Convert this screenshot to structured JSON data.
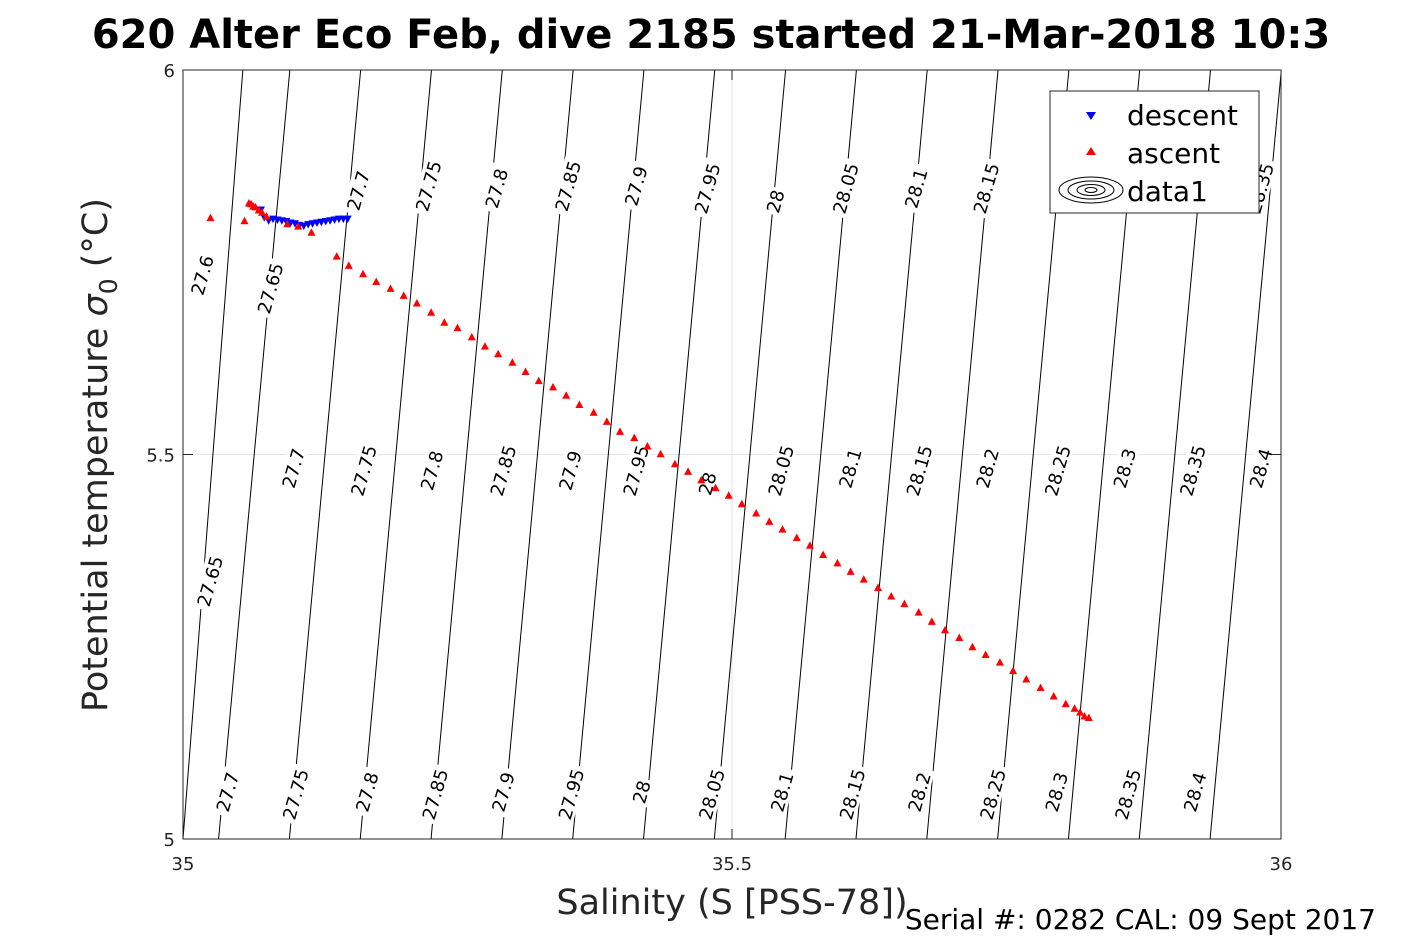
{
  "chart_data": {
    "type": "scatter",
    "title": "620 Alter Eco Feb, dive 2185 started 21-Mar-2018 10:3",
    "xlabel": "Salinity (S [PSS-78])",
    "ylabel_text": "Potential temperature ",
    "ylabel_symbol": "σ",
    "ylabel_subscript": "0",
    "ylabel_unit": " (°C)",
    "xlim": [
      35,
      36
    ],
    "ylim": [
      5,
      6
    ],
    "x_ticks": [
      {
        "value": 35,
        "label": "35"
      },
      {
        "value": 35.5,
        "label": "35.5"
      },
      {
        "value": 36,
        "label": "36"
      }
    ],
    "y_ticks": [
      {
        "value": 5,
        "label": "5"
      },
      {
        "value": 5.5,
        "label": "5.5"
      },
      {
        "value": 6,
        "label": "6"
      }
    ],
    "grid": true,
    "legend_location": "top-right",
    "legend": [
      {
        "label": "descent",
        "marker": "triangle-down",
        "color": "#0000ff"
      },
      {
        "label": "ascent",
        "marker": "triangle-up",
        "color": "#ff0000"
      },
      {
        "label": "data1",
        "marker": "contour",
        "color": "#000000"
      }
    ],
    "contours": {
      "levels": [
        "27.6",
        "27.65",
        "27.7",
        "27.75",
        "27.8",
        "27.85",
        "27.9",
        "27.95",
        "28",
        "28.05",
        "28.1",
        "28.15",
        "28.2",
        "28.25",
        "28.3",
        "28.35",
        "28.4"
      ],
      "lines": [
        {
          "x_at_t5": 35.0,
          "x_at_t6": 35.0545
        },
        {
          "x_at_t5": 35.0324,
          "x_at_t6": 35.0973
        },
        {
          "x_at_t5": 35.0969,
          "x_at_t6": 35.1618
        },
        {
          "x_at_t5": 35.1614,
          "x_at_t6": 35.2263
        },
        {
          "x_at_t5": 35.2259,
          "x_at_t6": 35.2908
        },
        {
          "x_at_t5": 35.2904,
          "x_at_t6": 35.3553
        },
        {
          "x_at_t5": 35.3549,
          "x_at_t6": 35.4198
        },
        {
          "x_at_t5": 35.4194,
          "x_at_t6": 35.4843
        },
        {
          "x_at_t5": 35.4839,
          "x_at_t6": 35.5488
        },
        {
          "x_at_t5": 35.5484,
          "x_at_t6": 35.6133
        },
        {
          "x_at_t5": 35.6129,
          "x_at_t6": 35.6778
        },
        {
          "x_at_t5": 35.6774,
          "x_at_t6": 35.7423
        },
        {
          "x_at_t5": 35.7419,
          "x_at_t6": 35.8068
        },
        {
          "x_at_t5": 35.8064,
          "x_at_t6": 35.8713
        },
        {
          "x_at_t5": 35.8709,
          "x_at_t6": 35.9358
        },
        {
          "x_at_t5": 35.9354,
          "x_at_t6": 36.0003
        },
        {
          "x_at_t5": 35.9999,
          "x_at_t6": 36.0648
        }
      ],
      "labels": [
        {
          "text": "27.6",
          "s": 35.018,
          "t": 5.733
        },
        {
          "text": "27.65",
          "s": 35.08,
          "t": 5.716
        },
        {
          "text": "27.7",
          "s": 35.16,
          "t": 5.843
        },
        {
          "text": "27.75",
          "s": 35.224,
          "t": 5.849
        },
        {
          "text": "27.8",
          "s": 35.286,
          "t": 5.846
        },
        {
          "text": "27.85",
          "s": 35.351,
          "t": 5.849
        },
        {
          "text": "27.9",
          "s": 35.413,
          "t": 5.849
        },
        {
          "text": "27.95",
          "s": 35.478,
          "t": 5.846
        },
        {
          "text": "28",
          "s": 35.54,
          "t": 5.829
        },
        {
          "text": "28.05",
          "s": 35.604,
          "t": 5.846
        },
        {
          "text": "28.1",
          "s": 35.668,
          "t": 5.846
        },
        {
          "text": "28.15",
          "s": 35.732,
          "t": 5.846
        },
        {
          "text": "28.35",
          "s": 35.982,
          "t": 5.846
        },
        {
          "text": "27.65",
          "s": 35.025,
          "t": 5.335
        },
        {
          "text": "27.7",
          "s": 35.101,
          "t": 5.482
        },
        {
          "text": "27.75",
          "s": 35.165,
          "t": 5.479
        },
        {
          "text": "27.8",
          "s": 35.227,
          "t": 5.479
        },
        {
          "text": "27.85",
          "s": 35.292,
          "t": 5.479
        },
        {
          "text": "27.9",
          "s": 35.353,
          "t": 5.479
        },
        {
          "text": "27.95",
          "s": 35.413,
          "t": 5.479
        },
        {
          "text": "28",
          "s": 35.478,
          "t": 5.462
        },
        {
          "text": "28.05",
          "s": 35.545,
          "t": 5.479
        },
        {
          "text": "28.1",
          "s": 35.608,
          "t": 5.482
        },
        {
          "text": "28.15",
          "s": 35.671,
          "t": 5.479
        },
        {
          "text": "28.2",
          "s": 35.733,
          "t": 5.482
        },
        {
          "text": "28.25",
          "s": 35.797,
          "t": 5.479
        },
        {
          "text": "28.3",
          "s": 35.858,
          "t": 5.482
        },
        {
          "text": "28.35",
          "s": 35.92,
          "t": 5.479
        },
        {
          "text": "28.4",
          "s": 35.982,
          "t": 5.482
        },
        {
          "text": "27.7",
          "s": 35.041,
          "t": 5.061
        },
        {
          "text": "27.75",
          "s": 35.103,
          "t": 5.058
        },
        {
          "text": "27.8",
          "s": 35.168,
          "t": 5.061
        },
        {
          "text": "27.85",
          "s": 35.23,
          "t": 5.058
        },
        {
          "text": "27.9",
          "s": 35.292,
          "t": 5.061
        },
        {
          "text": "27.95",
          "s": 35.354,
          "t": 5.058
        },
        {
          "text": "28",
          "s": 35.418,
          "t": 5.061
        },
        {
          "text": "28.05",
          "s": 35.482,
          "t": 5.058
        },
        {
          "text": "28.1",
          "s": 35.546,
          "t": 5.061
        },
        {
          "text": "28.15",
          "s": 35.61,
          "t": 5.058
        },
        {
          "text": "28.2",
          "s": 35.671,
          "t": 5.061
        },
        {
          "text": "28.25",
          "s": 35.738,
          "t": 5.058
        },
        {
          "text": "28.3",
          "s": 35.796,
          "t": 5.061
        },
        {
          "text": "28.35",
          "s": 35.861,
          "t": 5.058
        },
        {
          "text": "28.4",
          "s": 35.922,
          "t": 5.061
        }
      ]
    },
    "series": [
      {
        "name": "descent",
        "marker": "triangle-down",
        "color": "#0000ff",
        "points": [
          {
            "x": 35.071,
            "y": 5.818
          },
          {
            "x": 35.074,
            "y": 5.808
          },
          {
            "x": 35.078,
            "y": 5.804
          },
          {
            "x": 35.082,
            "y": 5.806
          },
          {
            "x": 35.086,
            "y": 5.805
          },
          {
            "x": 35.09,
            "y": 5.804
          },
          {
            "x": 35.094,
            "y": 5.803
          },
          {
            "x": 35.098,
            "y": 5.801
          },
          {
            "x": 35.102,
            "y": 5.8
          },
          {
            "x": 35.106,
            "y": 5.798
          },
          {
            "x": 35.11,
            "y": 5.797
          },
          {
            "x": 35.114,
            "y": 5.799
          },
          {
            "x": 35.118,
            "y": 5.8
          },
          {
            "x": 35.122,
            "y": 5.801
          },
          {
            "x": 35.126,
            "y": 5.802
          },
          {
            "x": 35.13,
            "y": 5.803
          },
          {
            "x": 35.134,
            "y": 5.804
          },
          {
            "x": 35.138,
            "y": 5.805
          },
          {
            "x": 35.142,
            "y": 5.806
          },
          {
            "x": 35.146,
            "y": 5.806
          },
          {
            "x": 35.15,
            "y": 5.806
          }
        ]
      },
      {
        "name": "ascent",
        "marker": "triangle-up",
        "color": "#ff0000",
        "points": [
          {
            "x": 35.025,
            "y": 5.808
          },
          {
            "x": 35.056,
            "y": 5.804
          },
          {
            "x": 35.06,
            "y": 5.827
          },
          {
            "x": 35.062,
            "y": 5.826
          },
          {
            "x": 35.064,
            "y": 5.823
          },
          {
            "x": 35.066,
            "y": 5.822
          },
          {
            "x": 35.069,
            "y": 5.818
          },
          {
            "x": 35.072,
            "y": 5.815
          },
          {
            "x": 35.076,
            "y": 5.81
          },
          {
            "x": 35.095,
            "y": 5.8
          },
          {
            "x": 35.105,
            "y": 5.797
          },
          {
            "x": 35.117,
            "y": 5.789
          },
          {
            "x": 35.14,
            "y": 5.758
          },
          {
            "x": 35.151,
            "y": 5.746
          },
          {
            "x": 35.164,
            "y": 5.735
          },
          {
            "x": 35.176,
            "y": 5.725
          },
          {
            "x": 35.189,
            "y": 5.716
          },
          {
            "x": 35.201,
            "y": 5.707
          },
          {
            "x": 35.213,
            "y": 5.697
          },
          {
            "x": 35.226,
            "y": 5.685
          },
          {
            "x": 35.238,
            "y": 5.672
          },
          {
            "x": 35.25,
            "y": 5.665
          },
          {
            "x": 35.263,
            "y": 5.653
          },
          {
            "x": 35.275,
            "y": 5.641
          },
          {
            "x": 35.287,
            "y": 5.631
          },
          {
            "x": 35.3,
            "y": 5.62
          },
          {
            "x": 35.312,
            "y": 5.608
          },
          {
            "x": 35.324,
            "y": 5.596
          },
          {
            "x": 35.337,
            "y": 5.588
          },
          {
            "x": 35.349,
            "y": 5.577
          },
          {
            "x": 35.361,
            "y": 5.565
          },
          {
            "x": 35.374,
            "y": 5.555
          },
          {
            "x": 35.386,
            "y": 5.543
          },
          {
            "x": 35.398,
            "y": 5.53
          },
          {
            "x": 35.411,
            "y": 5.522
          },
          {
            "x": 35.423,
            "y": 5.511
          },
          {
            "x": 35.435,
            "y": 5.501
          },
          {
            "x": 35.448,
            "y": 5.488
          },
          {
            "x": 35.46,
            "y": 5.478
          },
          {
            "x": 35.472,
            "y": 5.467
          },
          {
            "x": 35.485,
            "y": 5.457
          },
          {
            "x": 35.497,
            "y": 5.447
          },
          {
            "x": 35.509,
            "y": 5.436
          },
          {
            "x": 35.522,
            "y": 5.424
          },
          {
            "x": 35.534,
            "y": 5.413
          },
          {
            "x": 35.546,
            "y": 5.403
          },
          {
            "x": 35.559,
            "y": 5.392
          },
          {
            "x": 35.571,
            "y": 5.382
          },
          {
            "x": 35.583,
            "y": 5.37
          },
          {
            "x": 35.596,
            "y": 5.359
          },
          {
            "x": 35.608,
            "y": 5.348
          },
          {
            "x": 35.62,
            "y": 5.338
          },
          {
            "x": 35.633,
            "y": 5.327
          },
          {
            "x": 35.645,
            "y": 5.316
          },
          {
            "x": 35.657,
            "y": 5.306
          },
          {
            "x": 35.67,
            "y": 5.295
          },
          {
            "x": 35.682,
            "y": 5.283
          },
          {
            "x": 35.694,
            "y": 5.272
          },
          {
            "x": 35.707,
            "y": 5.262
          },
          {
            "x": 35.719,
            "y": 5.25
          },
          {
            "x": 35.731,
            "y": 5.24
          },
          {
            "x": 35.744,
            "y": 5.23
          },
          {
            "x": 35.756,
            "y": 5.219
          },
          {
            "x": 35.768,
            "y": 5.208
          },
          {
            "x": 35.781,
            "y": 5.197
          },
          {
            "x": 35.793,
            "y": 5.186
          },
          {
            "x": 35.804,
            "y": 5.176
          },
          {
            "x": 35.812,
            "y": 5.17
          },
          {
            "x": 35.817,
            "y": 5.165
          },
          {
            "x": 35.821,
            "y": 5.16
          },
          {
            "x": 35.825,
            "y": 5.158
          }
        ]
      }
    ]
  },
  "footer": {
    "serial_text": "Serial #: 0282  CAL: 09 Sept 2017"
  }
}
